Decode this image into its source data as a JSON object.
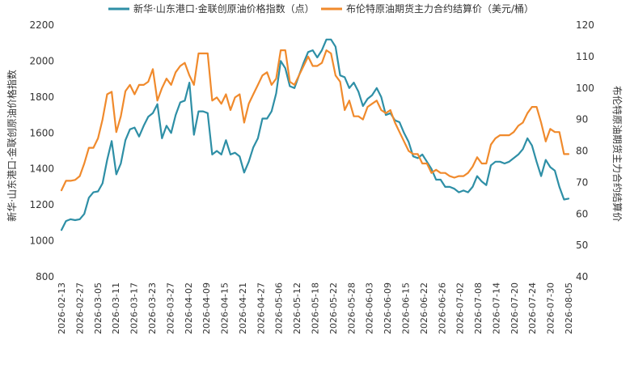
{
  "chart_data": {
    "type": "line",
    "legend_position": "top",
    "grid": false,
    "y_left": {
      "label": "新华·山东港口·金联创原油价格指数",
      "min": 800,
      "max": 2200,
      "ticks": [
        "800",
        "1000",
        "1200",
        "1400",
        "1600",
        "1800",
        "2000",
        "2200"
      ]
    },
    "y_right": {
      "label": "布伦特原油期货主力合约结算价",
      "min": 40,
      "max": 120,
      "ticks": [
        "40",
        "50",
        "60",
        "70",
        "80",
        "90",
        "100",
        "110",
        "120"
      ]
    },
    "x_ticks": [
      "2026-02-13",
      "2026-02-27",
      "2026-03-05",
      "2026-03-11",
      "2026-03-17",
      "2026-03-23",
      "2026-03-27",
      "2026-04-02",
      "2026-04-09",
      "2026-04-15",
      "2026-04-21",
      "2026-04-27",
      "2026-05-06",
      "2026-05-12",
      "2026-05-18",
      "2026-05-22",
      "2026-05-28",
      "2026-06-03",
      "2026-06-09",
      "2026-06-15",
      "2026-06-22",
      "2026-06-26",
      "2026-07-02",
      "2026-07-08",
      "2026-07-14",
      "2026-07-20",
      "2026-07-24",
      "2026-07-30",
      "2026-08-05"
    ],
    "series": [
      {
        "name": "新华·山东港口·金联创原油价格指数（点）",
        "axis": "left",
        "color": "#2e8fa6",
        "points": [
          [
            0,
            1060
          ],
          [
            1,
            1110
          ],
          [
            2,
            1120
          ],
          [
            3,
            1115
          ],
          [
            4,
            1120
          ],
          [
            5,
            1150
          ],
          [
            6,
            1240
          ],
          [
            7,
            1270
          ],
          [
            8,
            1275
          ],
          [
            9,
            1320
          ],
          [
            10,
            1450
          ],
          [
            11,
            1555
          ],
          [
            12,
            1370
          ],
          [
            13,
            1430
          ],
          [
            14,
            1560
          ],
          [
            15,
            1620
          ],
          [
            16,
            1630
          ],
          [
            17,
            1580
          ],
          [
            18,
            1640
          ],
          [
            19,
            1690
          ],
          [
            20,
            1710
          ],
          [
            21,
            1760
          ],
          [
            22,
            1570
          ],
          [
            23,
            1640
          ],
          [
            24,
            1600
          ],
          [
            25,
            1700
          ],
          [
            26,
            1770
          ],
          [
            27,
            1780
          ],
          [
            28,
            1880
          ],
          [
            29,
            1590
          ],
          [
            30,
            1720
          ],
          [
            31,
            1720
          ],
          [
            32,
            1710
          ],
          [
            33,
            1480
          ],
          [
            34,
            1500
          ],
          [
            35,
            1480
          ],
          [
            36,
            1560
          ],
          [
            37,
            1480
          ],
          [
            38,
            1490
          ],
          [
            39,
            1470
          ],
          [
            40,
            1380
          ],
          [
            41,
            1440
          ],
          [
            42,
            1520
          ],
          [
            43,
            1570
          ],
          [
            44,
            1680
          ],
          [
            45,
            1680
          ],
          [
            46,
            1720
          ],
          [
            47,
            1820
          ],
          [
            48,
            2000
          ],
          [
            49,
            1960
          ],
          [
            50,
            1860
          ],
          [
            51,
            1850
          ],
          [
            52,
            1920
          ],
          [
            53,
            1990
          ],
          [
            54,
            2050
          ],
          [
            55,
            2060
          ],
          [
            56,
            2020
          ],
          [
            57,
            2060
          ],
          [
            58,
            2120
          ],
          [
            59,
            2120
          ],
          [
            60,
            2080
          ],
          [
            61,
            1920
          ],
          [
            62,
            1910
          ],
          [
            63,
            1850
          ],
          [
            64,
            1880
          ],
          [
            65,
            1830
          ],
          [
            66,
            1750
          ],
          [
            67,
            1790
          ],
          [
            68,
            1810
          ],
          [
            69,
            1850
          ],
          [
            70,
            1800
          ],
          [
            71,
            1700
          ],
          [
            72,
            1710
          ],
          [
            73,
            1670
          ],
          [
            74,
            1660
          ],
          [
            75,
            1600
          ],
          [
            76,
            1550
          ],
          [
            77,
            1470
          ],
          [
            78,
            1460
          ],
          [
            79,
            1480
          ],
          [
            80,
            1440
          ],
          [
            81,
            1400
          ],
          [
            82,
            1340
          ],
          [
            83,
            1340
          ],
          [
            84,
            1300
          ],
          [
            85,
            1300
          ],
          [
            86,
            1290
          ],
          [
            87,
            1270
          ],
          [
            88,
            1280
          ],
          [
            89,
            1270
          ],
          [
            90,
            1300
          ],
          [
            91,
            1360
          ],
          [
            92,
            1330
          ],
          [
            93,
            1310
          ],
          [
            94,
            1420
          ],
          [
            95,
            1440
          ],
          [
            96,
            1440
          ],
          [
            97,
            1430
          ],
          [
            98,
            1440
          ],
          [
            99,
            1460
          ],
          [
            100,
            1480
          ],
          [
            101,
            1510
          ],
          [
            102,
            1570
          ],
          [
            103,
            1530
          ],
          [
            104,
            1440
          ],
          [
            105,
            1360
          ],
          [
            106,
            1450
          ],
          [
            107,
            1410
          ],
          [
            108,
            1390
          ],
          [
            109,
            1300
          ],
          [
            110,
            1230
          ],
          [
            111,
            1235
          ]
        ]
      },
      {
        "name": "布伦特原油期货主力合约结算价（美元/桶）",
        "axis": "right",
        "color": "#f08a2c",
        "points": [
          [
            0,
            67.5
          ],
          [
            1,
            70.5
          ],
          [
            2,
            70.5
          ],
          [
            3,
            70.8
          ],
          [
            4,
            72
          ],
          [
            5,
            76
          ],
          [
            6,
            81
          ],
          [
            7,
            81
          ],
          [
            8,
            84
          ],
          [
            9,
            90
          ],
          [
            10,
            98
          ],
          [
            11,
            98.8
          ],
          [
            12,
            86
          ],
          [
            13,
            91
          ],
          [
            14,
            99
          ],
          [
            15,
            101
          ],
          [
            16,
            98
          ],
          [
            17,
            101
          ],
          [
            18,
            101
          ],
          [
            19,
            102
          ],
          [
            20,
            106
          ],
          [
            21,
            96
          ],
          [
            22,
            100
          ],
          [
            23,
            103
          ],
          [
            24,
            101
          ],
          [
            25,
            105
          ],
          [
            26,
            107
          ],
          [
            27,
            108
          ],
          [
            28,
            104
          ],
          [
            29,
            101
          ],
          [
            30,
            111
          ],
          [
            31,
            111
          ],
          [
            32,
            111
          ],
          [
            33,
            96
          ],
          [
            34,
            97
          ],
          [
            35,
            95
          ],
          [
            36,
            98
          ],
          [
            37,
            93
          ],
          [
            38,
            97
          ],
          [
            39,
            98
          ],
          [
            40,
            89
          ],
          [
            41,
            95
          ],
          [
            42,
            98
          ],
          [
            43,
            101
          ],
          [
            44,
            104
          ],
          [
            45,
            105
          ],
          [
            46,
            101
          ],
          [
            47,
            103
          ],
          [
            48,
            112
          ],
          [
            49,
            112
          ],
          [
            50,
            102
          ],
          [
            51,
            101
          ],
          [
            52,
            104
          ],
          [
            53,
            107
          ],
          [
            54,
            110
          ],
          [
            55,
            107
          ],
          [
            56,
            107
          ],
          [
            57,
            108
          ],
          [
            58,
            112
          ],
          [
            59,
            111
          ],
          [
            60,
            104
          ],
          [
            61,
            102
          ],
          [
            62,
            93
          ],
          [
            63,
            96
          ],
          [
            64,
            91
          ],
          [
            65,
            91
          ],
          [
            66,
            90
          ],
          [
            67,
            94
          ],
          [
            68,
            95
          ],
          [
            69,
            96
          ],
          [
            70,
            93
          ],
          [
            71,
            92
          ],
          [
            72,
            93
          ],
          [
            73,
            89
          ],
          [
            74,
            86
          ],
          [
            75,
            83
          ],
          [
            76,
            80
          ],
          [
            77,
            79
          ],
          [
            78,
            79
          ],
          [
            79,
            76
          ],
          [
            80,
            76
          ],
          [
            81,
            73
          ],
          [
            82,
            74
          ],
          [
            83,
            73
          ],
          [
            84,
            73
          ],
          [
            85,
            72
          ],
          [
            86,
            71.5
          ],
          [
            87,
            72
          ],
          [
            88,
            72
          ],
          [
            89,
            73
          ],
          [
            90,
            75
          ],
          [
            91,
            78
          ],
          [
            92,
            76
          ],
          [
            93,
            76
          ],
          [
            94,
            82
          ],
          [
            95,
            84
          ],
          [
            96,
            85
          ],
          [
            97,
            85
          ],
          [
            98,
            85
          ],
          [
            99,
            86
          ],
          [
            100,
            88
          ],
          [
            101,
            89
          ],
          [
            102,
            92
          ],
          [
            103,
            94
          ],
          [
            104,
            94
          ],
          [
            105,
            89
          ],
          [
            106,
            83
          ],
          [
            107,
            87
          ],
          [
            108,
            86
          ],
          [
            109,
            86
          ],
          [
            110,
            79
          ],
          [
            111,
            79
          ]
        ]
      }
    ]
  }
}
